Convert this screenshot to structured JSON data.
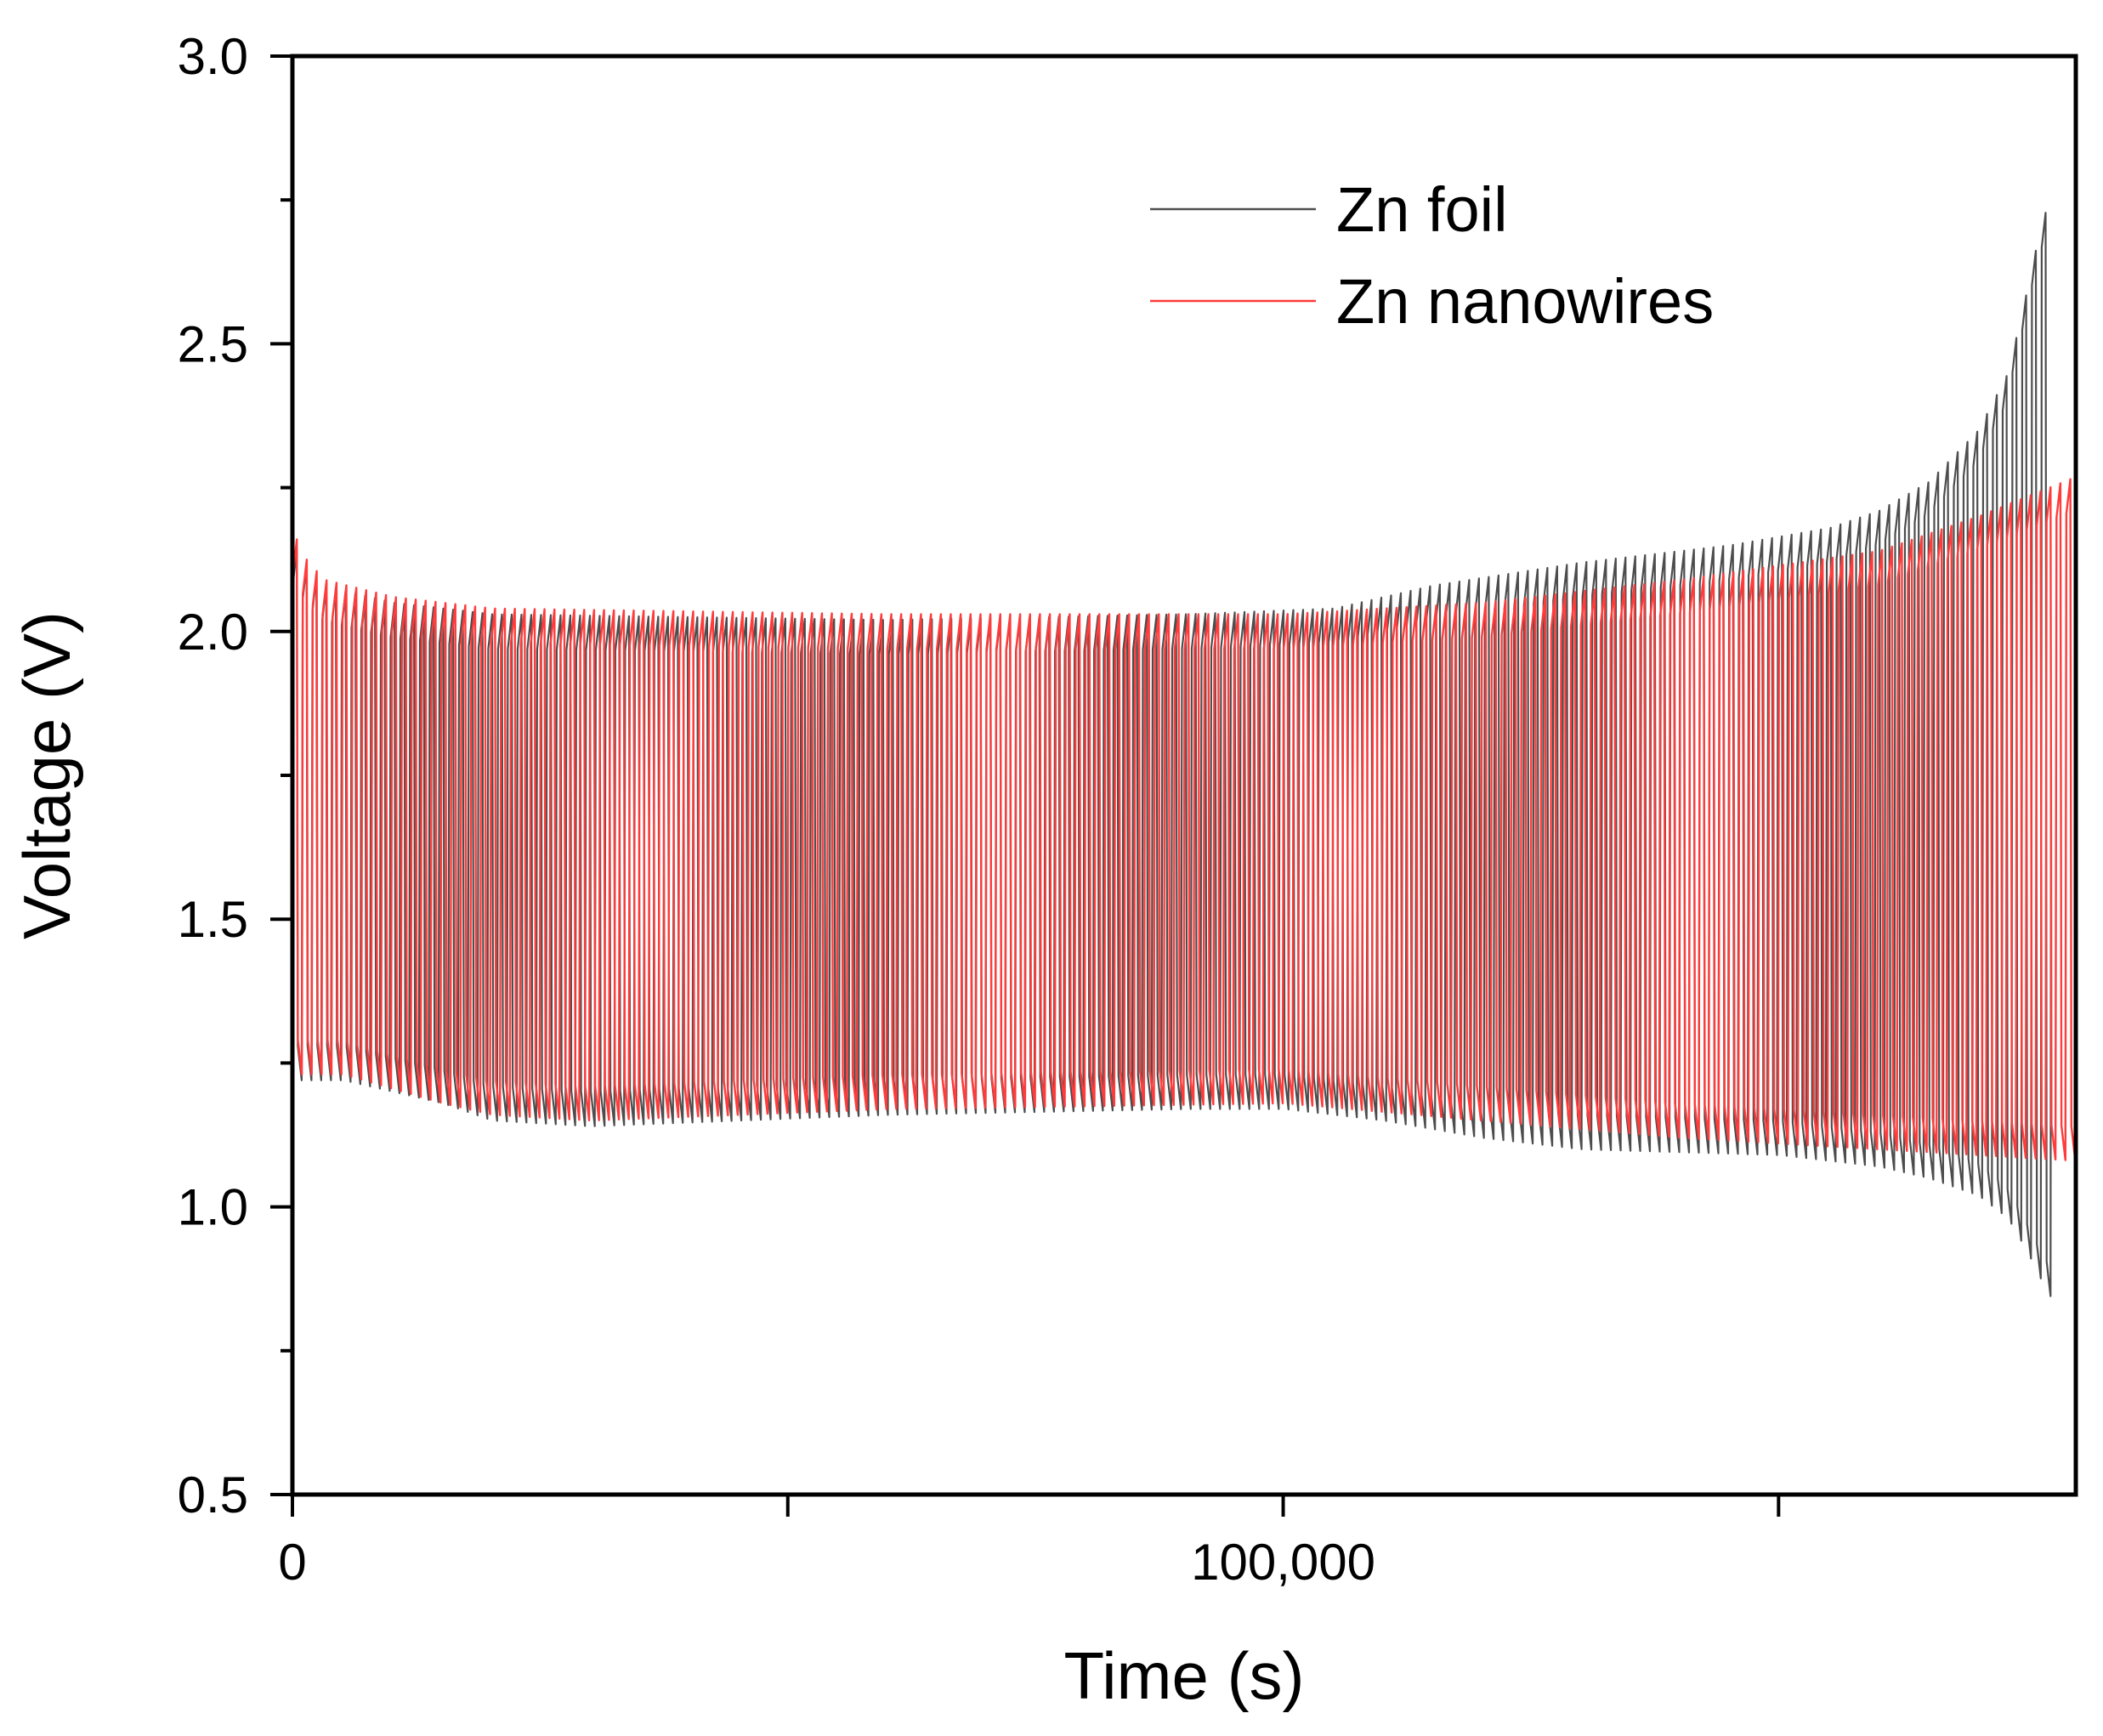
{
  "chart_data": {
    "type": "line",
    "title": "",
    "xlabel": "Time (s)",
    "ylabel": "Voltage (V)",
    "xlim": [
      0,
      180000
    ],
    "ylim": [
      0.5,
      3.0
    ],
    "grid": false,
    "legend_position": "top-right",
    "x_ticks": [
      {
        "value": 0,
        "label": "0"
      },
      {
        "value": 50000,
        "label": ""
      },
      {
        "value": 100000,
        "label": "100,000"
      },
      {
        "value": 150000,
        "label": ""
      }
    ],
    "y_ticks": [
      {
        "value": 0.5,
        "label": "0.5"
      },
      {
        "value": 1.0,
        "label": "1.0"
      },
      {
        "value": 1.5,
        "label": "1.5"
      },
      {
        "value": 2.0,
        "label": "2.0"
      },
      {
        "value": 2.5,
        "label": "2.5"
      },
      {
        "value": 3.0,
        "label": "3.0"
      }
    ],
    "cycle_count": 180,
    "series": [
      {
        "name": "Zn foil",
        "color": "#4d4d4d",
        "x_end": 177500,
        "upper_envelope": [
          [
            0,
            2.15
          ],
          [
            1000,
            2.12
          ],
          [
            3000,
            2.08
          ],
          [
            10000,
            2.05
          ],
          [
            20000,
            2.03
          ],
          [
            60000,
            2.02
          ],
          [
            90000,
            2.03
          ],
          [
            105000,
            2.04
          ],
          [
            115000,
            2.08
          ],
          [
            130000,
            2.12
          ],
          [
            145000,
            2.15
          ],
          [
            155000,
            2.18
          ],
          [
            160000,
            2.21
          ],
          [
            165000,
            2.26
          ],
          [
            170000,
            2.35
          ],
          [
            173000,
            2.45
          ],
          [
            175000,
            2.6
          ],
          [
            176500,
            2.72
          ],
          [
            177500,
            2.75
          ]
        ],
        "lower_envelope": [
          [
            0,
            1.22
          ],
          [
            5000,
            1.22
          ],
          [
            15000,
            1.18
          ],
          [
            20000,
            1.15
          ],
          [
            30000,
            1.14
          ],
          [
            60000,
            1.16
          ],
          [
            90000,
            1.17
          ],
          [
            100000,
            1.17
          ],
          [
            110000,
            1.15
          ],
          [
            120000,
            1.12
          ],
          [
            130000,
            1.1
          ],
          [
            150000,
            1.09
          ],
          [
            160000,
            1.07
          ],
          [
            165000,
            1.05
          ],
          [
            170000,
            1.02
          ],
          [
            173000,
            0.98
          ],
          [
            175000,
            0.92
          ],
          [
            177000,
            0.85
          ],
          [
            177500,
            0.84
          ]
        ]
      },
      {
        "name": "Zn nanowires",
        "color": "#ff3b3b",
        "x_end": 180000,
        "upper_envelope": [
          [
            0,
            2.17
          ],
          [
            1000,
            2.13
          ],
          [
            3000,
            2.09
          ],
          [
            10000,
            2.06
          ],
          [
            20000,
            2.04
          ],
          [
            60000,
            2.03
          ],
          [
            100000,
            2.03
          ],
          [
            120000,
            2.05
          ],
          [
            140000,
            2.09
          ],
          [
            160000,
            2.14
          ],
          [
            170000,
            2.2
          ],
          [
            180000,
            2.27
          ]
        ],
        "lower_envelope": [
          [
            0,
            1.23
          ],
          [
            5000,
            1.23
          ],
          [
            15000,
            1.18
          ],
          [
            20000,
            1.16
          ],
          [
            30000,
            1.15
          ],
          [
            60000,
            1.17
          ],
          [
            100000,
            1.18
          ],
          [
            120000,
            1.15
          ],
          [
            140000,
            1.12
          ],
          [
            160000,
            1.1
          ],
          [
            170000,
            1.09
          ],
          [
            180000,
            1.08
          ]
        ]
      }
    ]
  }
}
